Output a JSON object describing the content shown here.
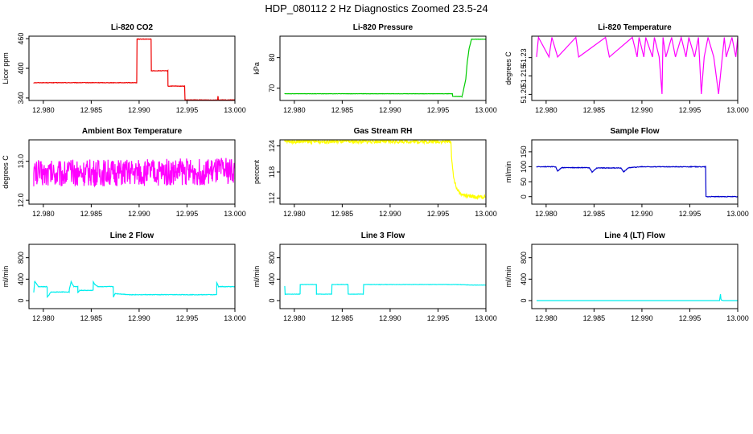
{
  "figure": {
    "title": "HDP_080112  2 Hz Diagnostics Zoomed 23.5-24"
  },
  "chart_data": [
    {
      "type": "line",
      "title": "Li-820 CO2",
      "xlabel": "",
      "ylabel": "Licor ppm",
      "xlim": [
        12.9785,
        13.0
      ],
      "ylim": [
        335,
        465
      ],
      "color": "#ee0000",
      "noise": 0.5,
      "xticks": [
        12.98,
        12.985,
        12.99,
        12.995,
        13.0
      ],
      "xtick_labels": [
        "12.980",
        "12.985",
        "12.990",
        "12.995",
        "13.000"
      ],
      "yticks": [
        340,
        400,
        460
      ],
      "ytick_labels": [
        "340",
        "400",
        "460"
      ],
      "series": [
        {
          "x": [
            12.979,
            12.98975,
            12.98975,
            12.99125,
            12.99125,
            12.993,
            12.993,
            12.99475,
            12.99475,
            12.9982,
            12.9982,
            12.99825,
            12.99825,
            13.0
          ],
          "y": [
            371,
            371,
            459,
            459,
            395,
            395,
            364,
            364,
            336,
            336,
            343,
            343,
            336,
            336
          ]
        }
      ]
    },
    {
      "type": "line",
      "title": "Li-820 Pressure",
      "xlabel": "",
      "ylabel": "kPa",
      "xlim": [
        12.9785,
        13.0
      ],
      "ylim": [
        66,
        87
      ],
      "color": "#00cc00",
      "noise": 0.05,
      "xticks": [
        12.98,
        12.985,
        12.99,
        12.995,
        13.0
      ],
      "xtick_labels": [
        "12.980",
        "12.985",
        "12.990",
        "12.995",
        "13.000"
      ],
      "yticks": [
        70,
        80
      ],
      "ytick_labels": [
        "70",
        "80"
      ],
      "series": [
        {
          "x": [
            12.979,
            12.9965,
            12.9965,
            12.9975,
            12.9976,
            12.9979,
            12.99805,
            12.99825,
            12.9985,
            13.0
          ],
          "y": [
            68.2,
            68.2,
            67.3,
            67.3,
            68.5,
            73.0,
            78.5,
            83.0,
            86.0,
            86.0
          ]
        }
      ]
    },
    {
      "type": "line",
      "title": "Li-820 Temperature",
      "xlabel": "",
      "ylabel": "degrees C",
      "xlim": [
        12.9785,
        13.0
      ],
      "ylim": [
        51.195,
        51.2475
      ],
      "color": "#ff00ff",
      "noise": 0,
      "xticks": [
        12.98,
        12.985,
        12.99,
        12.995,
        13.0
      ],
      "xtick_labels": [
        "12.980",
        "12.985",
        "12.990",
        "12.995",
        "13.000"
      ],
      "yticks": [
        51.2,
        51.215,
        51.23
      ],
      "ytick_labels": [
        "51.20",
        "51.215",
        "51.23"
      ],
      "series": [
        {
          "x": [
            12.979,
            12.9792,
            12.9803,
            12.9806,
            12.9812,
            12.9831,
            12.9834,
            12.9862,
            12.9866,
            12.989,
            12.9895,
            12.9897,
            12.9902,
            12.9904,
            12.9911,
            12.9913,
            12.9918,
            12.9921,
            12.9922,
            12.9925,
            12.9931,
            12.9935,
            12.9941,
            12.9946,
            12.9949,
            12.9955,
            12.9959,
            12.9962,
            12.9965,
            12.9969,
            12.9975,
            12.998,
            12.9986,
            12.9988,
            12.9994,
            12.9998,
            13.0
          ],
          "y": [
            51.2305,
            51.2465,
            51.2305,
            51.2465,
            51.2305,
            51.2465,
            51.2305,
            51.2465,
            51.2305,
            51.2465,
            51.2305,
            51.2465,
            51.2305,
            51.2465,
            51.2305,
            51.2465,
            51.2305,
            51.2003,
            51.2465,
            51.2305,
            51.2465,
            51.2305,
            51.2465,
            51.2305,
            51.2465,
            51.2305,
            51.2465,
            51.2003,
            51.2305,
            51.2465,
            51.2305,
            51.2003,
            51.2465,
            51.2305,
            51.2465,
            51.2305,
            51.2465
          ]
        }
      ]
    },
    {
      "type": "line",
      "title": "Ambient Box Temperature",
      "xlabel": "",
      "ylabel": "degrees C",
      "xlim": [
        12.9785,
        13.0
      ],
      "ylim": [
        11.9,
        13.55
      ],
      "color": "#ff00ff",
      "noise": 0.35,
      "xticks": [
        12.98,
        12.985,
        12.99,
        12.995,
        13.0
      ],
      "xtick_labels": [
        "12.980",
        "12.985",
        "12.990",
        "12.995",
        "13.000"
      ],
      "yticks": [
        12.0,
        13.0
      ],
      "ytick_labels": [
        "12.0",
        "13.0"
      ],
      "series": [
        {
          "x": [
            12.979,
            12.99,
            13.0
          ],
          "y": [
            12.7,
            12.7,
            12.75
          ]
        }
      ]
    },
    {
      "type": "line",
      "title": "Gas Stream RH",
      "xlabel": "",
      "ylabel": "percent",
      "xlim": [
        12.9785,
        13.0
      ],
      "ylim": [
        110.6,
        125.4
      ],
      "color": "#ffff00",
      "noise": 0.4,
      "xticks": [
        12.98,
        12.985,
        12.99,
        12.995,
        13.0
      ],
      "xtick_labels": [
        "12.980",
        "12.985",
        "12.990",
        "12.995",
        "13.000"
      ],
      "yticks": [
        112,
        118,
        124
      ],
      "ytick_labels": [
        "112",
        "118",
        "124"
      ],
      "series": [
        {
          "x": [
            12.979,
            12.99635,
            12.9964,
            12.9966,
            12.9969,
            12.9973,
            12.998,
            12.999,
            12.9999
          ],
          "y": [
            125.0,
            125.0,
            122.0,
            117.0,
            114.5,
            113.0,
            112.5,
            112.2,
            112.3
          ]
        }
      ]
    },
    {
      "type": "line",
      "title": "Sample Flow",
      "xlabel": "",
      "ylabel": "ml/min",
      "xlim": [
        12.9785,
        13.0
      ],
      "ylim": [
        -25,
        190
      ],
      "color": "#0000cc",
      "noise": 1,
      "xticks": [
        12.98,
        12.985,
        12.99,
        12.995,
        13.0
      ],
      "xtick_labels": [
        "12.980",
        "12.985",
        "12.990",
        "12.995",
        "13.000"
      ],
      "yticks": [
        0,
        50,
        100,
        150
      ],
      "ytick_labels": [
        "0",
        "50",
        "100",
        "150"
      ],
      "series": [
        {
          "x": [
            12.979,
            12.981,
            12.9812,
            12.9816,
            12.9845,
            12.9848,
            12.9853,
            12.9878,
            12.9881,
            12.9886,
            12.99,
            12.99665,
            12.99665,
            13.0
          ],
          "y": [
            100,
            100,
            85,
            97,
            97,
            82,
            96,
            96,
            83,
            97,
            100,
            100,
            0,
            0
          ]
        }
      ]
    },
    {
      "type": "line",
      "title": "Line 2 Flow",
      "xlabel": "",
      "ylabel": "ml/min",
      "xlim": [
        12.9785,
        13.0
      ],
      "ylim": [
        -150,
        1050
      ],
      "color": "#00eeee",
      "noise": 5,
      "xticks": [
        12.98,
        12.985,
        12.99,
        12.995,
        13.0
      ],
      "xtick_labels": [
        "12.980",
        "12.985",
        "12.990",
        "12.995",
        "13.000"
      ],
      "yticks": [
        0,
        400,
        800
      ],
      "ytick_labels": [
        "0",
        "400",
        "800"
      ],
      "series": [
        {
          "x": [
            12.979,
            12.9791,
            12.9795,
            12.9804,
            12.9804,
            12.9808,
            12.9827,
            12.9827,
            12.9829,
            12.9832,
            12.9836,
            12.9836,
            12.9838,
            12.9852,
            12.9852,
            12.9854,
            12.9857,
            12.9873,
            12.9873,
            12.9875,
            12.989,
            12.9981,
            12.9981,
            12.9983,
            12.9987,
            13.0
          ],
          "y": [
            150,
            360,
            260,
            260,
            60,
            160,
            160,
            200,
            350,
            260,
            260,
            150,
            190,
            190,
            350,
            300,
            260,
            260,
            60,
            130,
            110,
            110,
            340,
            260,
            260,
            260
          ]
        }
      ]
    },
    {
      "type": "line",
      "title": "Line 3 Flow",
      "xlabel": "",
      "ylabel": "ml/min",
      "xlim": [
        12.9785,
        13.0
      ],
      "ylim": [
        -150,
        1050
      ],
      "color": "#00eeee",
      "noise": 3,
      "xticks": [
        12.98,
        12.985,
        12.99,
        12.995,
        13.0
      ],
      "xtick_labels": [
        "12.980",
        "12.985",
        "12.990",
        "12.995",
        "13.000"
      ],
      "yticks": [
        0,
        400,
        800
      ],
      "ytick_labels": [
        "0",
        "400",
        "800"
      ],
      "series": [
        {
          "x": [
            12.979,
            12.979,
            12.9791,
            12.9806,
            12.9806,
            12.9823,
            12.9823,
            12.9839,
            12.9839,
            12.9856,
            12.9856,
            12.9872,
            12.9872,
            12.9889,
            12.9889,
            12.997,
            12.9985,
            13.0
          ],
          "y": [
            270,
            120,
            120,
            120,
            300,
            300,
            120,
            120,
            300,
            300,
            120,
            120,
            300,
            300,
            300,
            300,
            290,
            290
          ]
        }
      ]
    },
    {
      "type": "line",
      "title": "Line 4 (LT) Flow",
      "xlabel": "",
      "ylabel": "ml/min",
      "xlim": [
        12.9785,
        13.0
      ],
      "ylim": [
        -150,
        1050
      ],
      "color": "#00eeee",
      "noise": 0,
      "xticks": [
        12.98,
        12.985,
        12.99,
        12.995,
        13.0
      ],
      "xtick_labels": [
        "12.980",
        "12.985",
        "12.990",
        "12.995",
        "13.000"
      ],
      "yticks": [
        0,
        400,
        800
      ],
      "ytick_labels": [
        "0",
        "400",
        "800"
      ],
      "series": [
        {
          "x": [
            12.979,
            12.9981,
            12.9982,
            12.99825,
            12.9983,
            12.9985,
            13.0
          ],
          "y": [
            0,
            0,
            120,
            30,
            10,
            0,
            0
          ]
        }
      ]
    }
  ]
}
